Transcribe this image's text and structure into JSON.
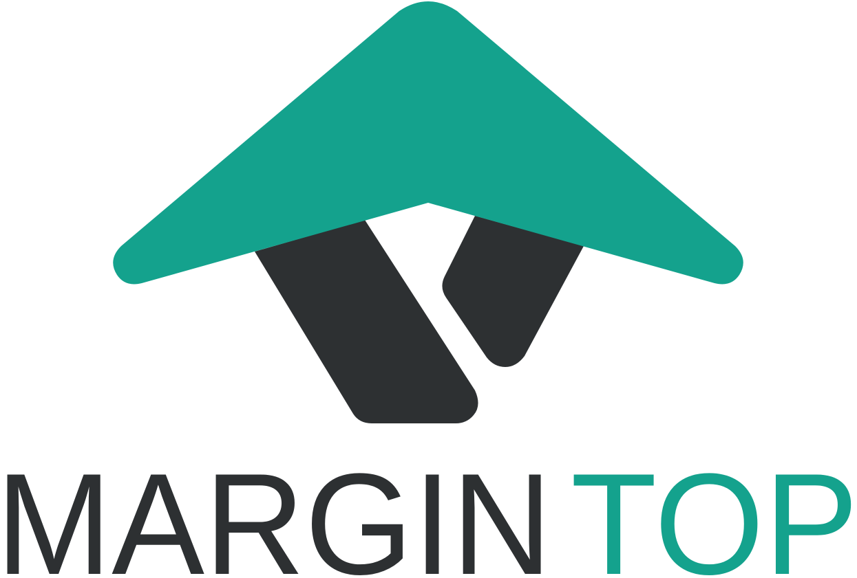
{
  "brand": {
    "word_primary": "MARGIN",
    "word_secondary": "TOP",
    "colors": {
      "teal": "#14a28d",
      "charcoal": "#2d3032",
      "background": "#ffffff"
    }
  }
}
